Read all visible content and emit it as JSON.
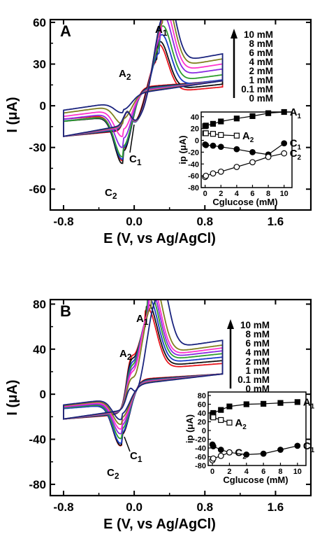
{
  "chart_data": [
    {
      "type": "line",
      "panel_label": "A",
      "xlabel": "E (V, vs Ag/AgCl)",
      "ylabel": "I (μA)",
      "xlim": [
        -0.95,
        2.0
      ],
      "ylim": [
        -75,
        62
      ],
      "xticks": [
        -0.8,
        0.0,
        0.8,
        1.6
      ],
      "xtick_labels": [
        "-0.8",
        "0.0",
        "0.8",
        "1.6"
      ],
      "yticks": [
        60,
        30,
        0,
        -30,
        -60
      ],
      "ytick_labels": [
        "60",
        "30",
        "0",
        "-30",
        "-60"
      ],
      "annotations": [
        "A1",
        "A2",
        "C1",
        "C2"
      ],
      "concentration_legend": [
        "10 mM",
        "8 mM",
        "6 mM",
        "4 mM",
        "2 mM",
        "1 mM",
        "0.1 mM",
        "0 mM"
      ],
      "series": [
        {
          "name": "0 mM",
          "color": "#e8141c",
          "anodic_peak": [
            0.25,
            25
          ],
          "a2": [
            -0.08,
            13
          ],
          "cathodic_peak": [
            -0.12,
            -60
          ]
        },
        {
          "name": "0.1 mM",
          "color": "#111111",
          "anodic_peak": [
            0.26,
            26
          ],
          "a2": [
            -0.08,
            13
          ],
          "cathodic_peak": [
            -0.12,
            -61
          ]
        },
        {
          "name": "1 mM",
          "color": "#1a3cc8",
          "anodic_peak": [
            0.28,
            29
          ],
          "a2": [
            -0.08,
            12
          ],
          "cathodic_peak": [
            -0.12,
            -58
          ]
        },
        {
          "name": "2 mM",
          "color": "#2e9e2e",
          "anodic_peak": [
            0.29,
            33
          ],
          "a2": [
            -0.08,
            11
          ],
          "cathodic_peak": [
            -0.12,
            -56
          ]
        },
        {
          "name": "4 mM",
          "color": "#8a2be2",
          "anodic_peak": [
            0.3,
            38
          ],
          "a2": [
            -0.08,
            10
          ],
          "cathodic_peak": [
            -0.12,
            -50
          ]
        },
        {
          "name": "6 mM",
          "color": "#ff33cc",
          "anodic_peak": [
            0.31,
            42
          ],
          "a2": [
            -0.08,
            9
          ],
          "cathodic_peak": [
            -0.12,
            -43
          ]
        },
        {
          "name": "8 mM",
          "color": "#808020",
          "anodic_peak": [
            0.32,
            46
          ],
          "a2": [
            -0.08,
            8
          ],
          "cathodic_peak": [
            -0.12,
            -35
          ]
        },
        {
          "name": "10 mM",
          "color": "#1a237e",
          "anodic_peak": [
            0.33,
            50
          ],
          "a2": [
            -0.08,
            7
          ],
          "cathodic_peak": [
            -0.12,
            -28
          ]
        }
      ],
      "inset": {
        "xlabel": "Cglucose (mM)",
        "ylabel": "ip (μA)",
        "xlim": [
          -0.5,
          11
        ],
        "ylim": [
          -80,
          48
        ],
        "xticks": [
          0,
          2,
          4,
          6,
          8,
          10
        ],
        "yticks": [
          40,
          20,
          0,
          -20,
          -40,
          -60,
          -80
        ],
        "series": [
          {
            "name": "A1",
            "marker": "filled-square",
            "x": [
              0,
              0.1,
              1,
              2,
              4,
              6,
              8,
              10
            ],
            "y": [
              24,
              25,
              28,
              32,
              37,
              41,
              46,
              48
            ]
          },
          {
            "name": "A2",
            "marker": "open-square",
            "x": [
              0,
              0.1,
              1,
              2,
              4
            ],
            "y": [
              12,
              12,
              11,
              9,
              8
            ]
          },
          {
            "name": "C1",
            "marker": "filled-circle",
            "x": [
              0,
              0.1,
              1,
              2,
              4,
              6,
              8,
              10
            ],
            "y": [
              -7,
              -8,
              -9,
              -11,
              -15,
              -20,
              -24,
              -5
            ]
          },
          {
            "name": "C2",
            "marker": "open-circle",
            "x": [
              0,
              0.1,
              1,
              2,
              4,
              6,
              8,
              10
            ],
            "y": [
              -62,
              -60,
              -56,
              -53,
              -45,
              -37,
              -28,
              -22
            ]
          }
        ]
      }
    },
    {
      "type": "line",
      "panel_label": "B",
      "xlabel": "E (V, vs Ag/AgCl)",
      "ylabel": "I (μA)",
      "xlim": [
        -0.95,
        2.0
      ],
      "ylim": [
        -90,
        84
      ],
      "xticks": [
        -0.8,
        0.0,
        0.8,
        1.6
      ],
      "xtick_labels": [
        "-0.8",
        "0.0",
        "0.8",
        "1.6"
      ],
      "yticks": [
        80,
        40,
        0,
        -40,
        -80
      ],
      "ytick_labels": [
        "80",
        "40",
        "0",
        "-40",
        "-80"
      ],
      "annotations": [
        "A1",
        "A2",
        "C1",
        "C2"
      ],
      "concentration_legend": [
        "10 mM",
        "8 mM",
        "6 mM",
        "4 mM",
        "2 mM",
        "1 mM",
        "0.1 mM",
        "0 mM"
      ],
      "series": [
        {
          "name": "0 mM",
          "color": "#e8141c",
          "anodic_peak": [
            0.12,
            50
          ],
          "a2": [
            -0.05,
            32
          ],
          "cathodic_peak": [
            -0.14,
            -65
          ]
        },
        {
          "name": "0.1 mM",
          "color": "#111111",
          "anodic_peak": [
            0.13,
            52
          ],
          "a2": [
            -0.05,
            31
          ],
          "cathodic_peak": [
            -0.14,
            -64
          ]
        },
        {
          "name": "1 mM",
          "color": "#1a3cc8",
          "anodic_peak": [
            0.14,
            55
          ],
          "a2": [
            -0.05,
            28
          ],
          "cathodic_peak": [
            -0.14,
            -62
          ]
        },
        {
          "name": "2 mM",
          "color": "#2e9e2e",
          "anodic_peak": [
            0.15,
            58
          ],
          "a2": [
            -0.05,
            26
          ],
          "cathodic_peak": [
            -0.14,
            -58
          ]
        },
        {
          "name": "4 mM",
          "color": "#8a2be2",
          "anodic_peak": [
            0.16,
            60
          ],
          "a2": [
            -0.05,
            24
          ],
          "cathodic_peak": [
            -0.14,
            -54
          ]
        },
        {
          "name": "6 mM",
          "color": "#ff33cc",
          "anodic_peak": [
            0.17,
            62
          ],
          "a2": [
            -0.05,
            22
          ],
          "cathodic_peak": [
            -0.14,
            -50
          ]
        },
        {
          "name": "8 mM",
          "color": "#808020",
          "anodic_peak": [
            0.19,
            64
          ],
          "a2": [
            -0.05,
            20
          ],
          "cathodic_peak": [
            -0.14,
            -46
          ]
        },
        {
          "name": "10 mM",
          "color": "#1a237e",
          "anodic_peak": [
            0.25,
            69
          ],
          "a2": [
            -0.05,
            18
          ],
          "cathodic_peak": [
            -0.14,
            -42
          ]
        }
      ],
      "inset": {
        "xlabel": "Cglucose (mM)",
        "ylabel": "ip (μA)",
        "xlim": [
          -0.5,
          11
        ],
        "ylim": [
          -80,
          88
        ],
        "xticks": [
          0,
          2,
          4,
          6,
          8,
          10
        ],
        "yticks": [
          80,
          60,
          40,
          20,
          0,
          -20,
          -40,
          -60,
          -80
        ],
        "series": [
          {
            "name": "A1",
            "marker": "filled-square",
            "x": [
              0,
              0.1,
              1,
              2,
              4,
              6,
              8,
              10
            ],
            "y": [
              36,
              40,
              47,
              55,
              60,
              61,
              63,
              65
            ]
          },
          {
            "name": "A2",
            "marker": "open-square",
            "x": [
              0,
              0.1,
              1,
              2
            ],
            "y": [
              32,
              30,
              24,
              18
            ]
          },
          {
            "name": "C1",
            "marker": "filled-circle",
            "x": [
              0,
              0.1,
              1,
              2,
              4,
              6,
              8,
              10
            ],
            "y": [
              -32,
              -36,
              -44,
              -50,
              -55,
              -53,
              -44,
              -35
            ]
          },
          {
            "name": "C2",
            "marker": "open-circle",
            "x": [
              0,
              0.1,
              1,
              2
            ],
            "y": [
              -68,
              -64,
              -58,
              -50
            ]
          }
        ]
      }
    }
  ]
}
